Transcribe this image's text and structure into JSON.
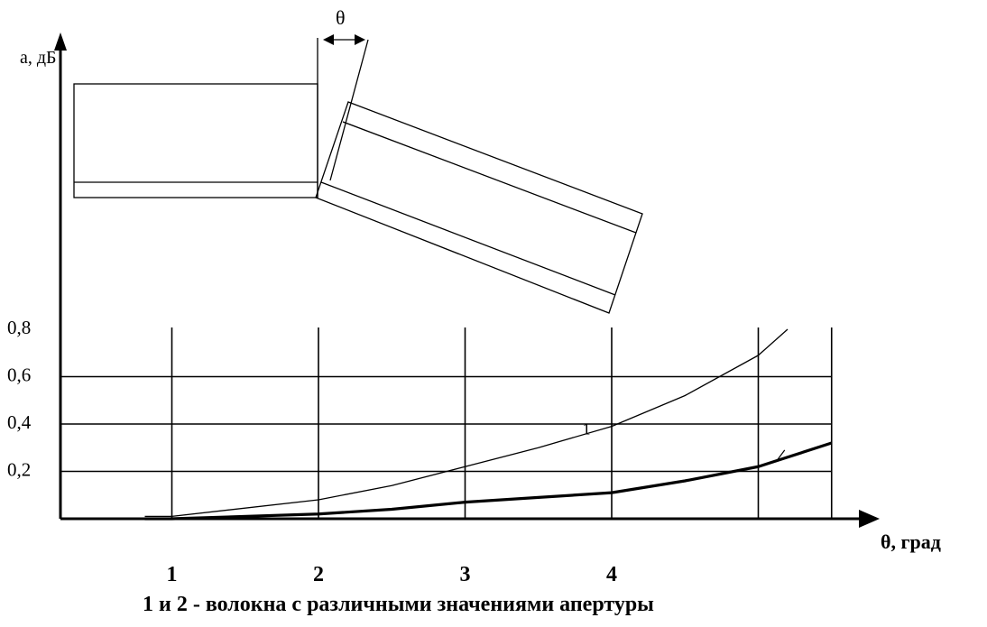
{
  "chart_data": {
    "type": "line",
    "ylabel": "a, дБ",
    "xlabel": "θ, град",
    "x_ticks": [
      "1",
      "2",
      "3",
      "4"
    ],
    "y_ticks": [
      "0,2",
      "0,4",
      "0,6",
      "0,8"
    ],
    "xlim": [
      0,
      5.5
    ],
    "ylim": [
      0,
      0.8
    ],
    "grid": true,
    "series": [
      {
        "name": "1",
        "x": [
          1.0,
          2.0,
          2.5,
          3.0,
          3.5,
          4.0,
          4.5,
          5.0,
          5.2
        ],
        "y": [
          0.01,
          0.08,
          0.14,
          0.22,
          0.3,
          0.39,
          0.52,
          0.69,
          0.8
        ]
      },
      {
        "name": "2",
        "x": [
          1.0,
          2.0,
          2.5,
          3.0,
          3.5,
          4.0,
          4.5,
          5.0,
          5.5
        ],
        "y": [
          0.0,
          0.02,
          0.04,
          0.07,
          0.09,
          0.11,
          0.16,
          0.22,
          0.32
        ]
      }
    ],
    "caption": "1 и 2 - волокна с различными значениями апертуры",
    "theta_symbol": "θ"
  }
}
